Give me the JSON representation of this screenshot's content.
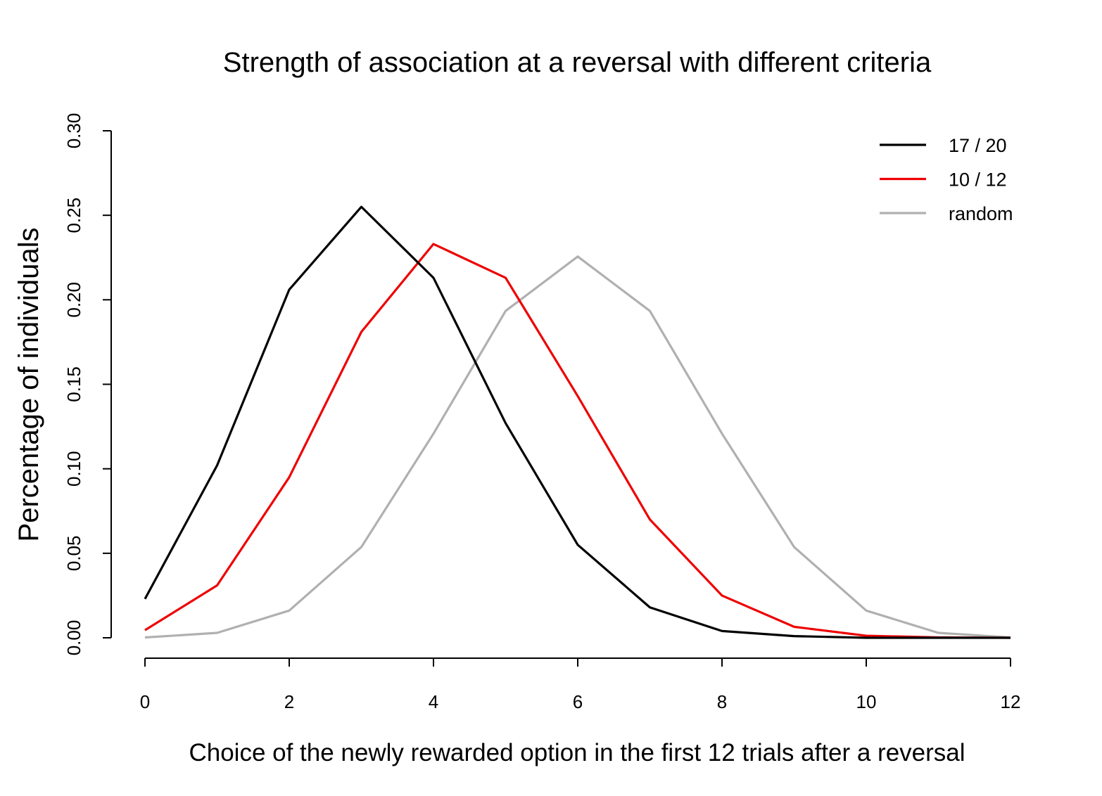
{
  "chart_data": {
    "type": "line",
    "title": "Strength of association at a reversal with different criteria",
    "xlabel": "Choice of the newly rewarded option in the first 12 trials after a reversal",
    "ylabel": "Percentage of individuals",
    "x": [
      0,
      1,
      2,
      3,
      4,
      5,
      6,
      7,
      8,
      9,
      10,
      11,
      12
    ],
    "xlim": [
      0,
      12
    ],
    "ylim": [
      0,
      0.3
    ],
    "xticks": [
      "0",
      "2",
      "4",
      "6",
      "8",
      "10",
      "12"
    ],
    "yticks": [
      "0.00",
      "0.05",
      "0.10",
      "0.15",
      "0.20",
      "0.25",
      "0.30"
    ],
    "grid": false,
    "legend_position": "top-right",
    "series": [
      {
        "name": "17 / 20",
        "color": "#000000",
        "values": [
          0.023,
          0.102,
          0.206,
          0.255,
          0.213,
          0.127,
          0.055,
          0.018,
          0.004,
          0.001,
          0.0,
          0.0,
          0.0
        ]
      },
      {
        "name": "10 / 12",
        "color": "#ee0000",
        "values": [
          0.0045,
          0.031,
          0.095,
          0.181,
          0.233,
          0.213,
          0.143,
          0.07,
          0.025,
          0.0065,
          0.0012,
          0.0002,
          0.0
        ]
      },
      {
        "name": "random",
        "color": "#b0b0b0",
        "values": [
          0.0002,
          0.0029,
          0.0161,
          0.0537,
          0.1208,
          0.1934,
          0.2256,
          0.1934,
          0.1208,
          0.0537,
          0.0161,
          0.0029,
          0.0002
        ]
      }
    ]
  }
}
